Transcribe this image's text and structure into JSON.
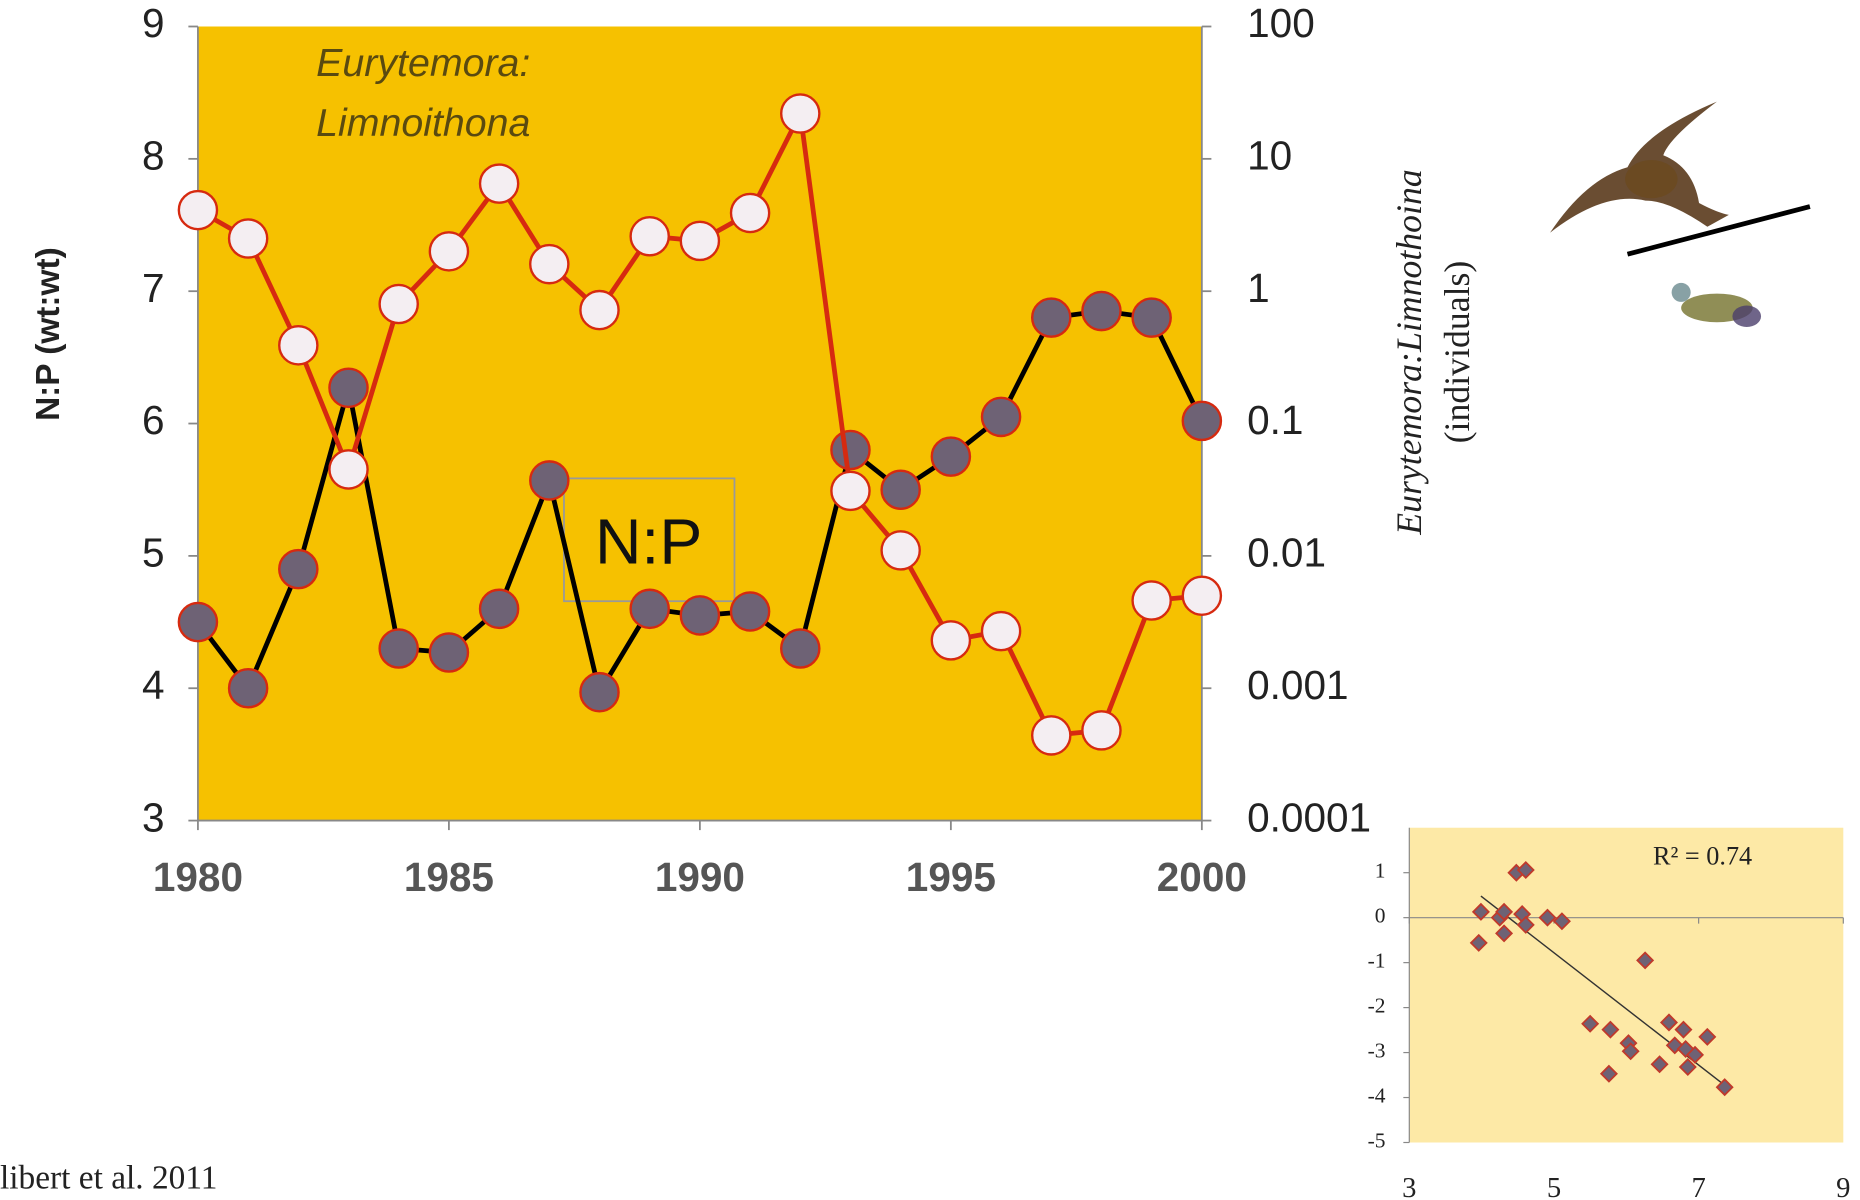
{
  "source": "libert et al. 2011",
  "chart_data": [
    {
      "type": "line",
      "ylabel": "N:P  (wt:wt)",
      "y2label": [
        "Eurytemora:Limnothoina",
        "(individuals)"
      ],
      "annotations": [
        "Eurytemora:",
        "Limnoithona",
        "N:P"
      ],
      "background": "#f6c100",
      "x": [
        1980,
        1981,
        1982,
        1983,
        1984,
        1985,
        1986,
        1987,
        1988,
        1989,
        1990,
        1991,
        1992,
        1993,
        1994,
        1995,
        1996,
        1997,
        1998,
        1999,
        2000
      ],
      "xlim": [
        1980,
        2000
      ],
      "xticks": [
        1980,
        1985,
        1990,
        1995,
        2000
      ],
      "ylim": [
        3,
        9
      ],
      "yticks": [
        3,
        4,
        5,
        6,
        7,
        8,
        9
      ],
      "y2lim": [
        0.0001,
        100
      ],
      "y2ticks": [
        0.0001,
        0.001,
        0.01,
        0.1,
        1,
        10,
        100
      ],
      "y2log": true,
      "series": [
        {
          "color": "#000000",
          "marker_color": "#6e6275",
          "values": [
            4.5,
            4.0,
            4.9,
            6.27,
            4.3,
            4.27,
            4.6,
            5.57,
            3.97,
            4.6,
            4.55,
            4.58,
            4.3,
            5.8,
            5.5,
            5.75,
            6.05,
            6.8,
            6.85,
            6.8,
            6.02
          ]
        },
        {
          "color": "#d62a10",
          "marker_color": "#f4eef2",
          "axis": "y2",
          "values": [
            4.1,
            2.5,
            0.39,
            0.045,
            0.8,
            2.0,
            6.5,
            1.6,
            0.72,
            2.6,
            2.4,
            3.9,
            22,
            0.031,
            0.011,
            0.0023,
            0.0027,
            0.00044,
            0.00048,
            0.0046,
            0.005
          ]
        }
      ]
    },
    {
      "type": "scatter",
      "background": "#fde9a6",
      "annotation": "R² = 0.74",
      "xlim": [
        3,
        9
      ],
      "xticks": [
        3,
        5,
        7,
        9
      ],
      "ylim": [
        -5,
        2
      ],
      "yticks": [
        -5,
        -4,
        -3,
        -2,
        -1,
        0,
        1
      ],
      "color": "#6e6275",
      "edge_color": "#c0392b",
      "x": [
        3.96,
        3.99,
        4.25,
        4.31,
        4.31,
        4.48,
        4.61,
        4.56,
        4.61,
        4.91,
        5.11,
        5.5,
        5.78,
        5.76,
        6.03,
        6.06,
        6.26,
        6.46,
        6.59,
        6.67,
        6.79,
        6.82,
        6.85,
        6.95,
        7.12,
        7.36
      ],
      "values": [
        -0.56,
        0.13,
        0,
        -0.35,
        0.13,
        1.0,
        1.06,
        0.08,
        -0.16,
        0,
        -0.08,
        -2.36,
        -2.49,
        -3.47,
        -2.79,
        -2.97,
        -0.95,
        -3.26,
        -2.33,
        -2.84,
        -2.49,
        -2.92,
        -3.32,
        -3.05,
        -2.65,
        -3.77
      ],
      "trendline": {
        "x": [
          3.99,
          7.33
        ],
        "y": [
          0.48,
          -3.69
        ]
      }
    }
  ]
}
